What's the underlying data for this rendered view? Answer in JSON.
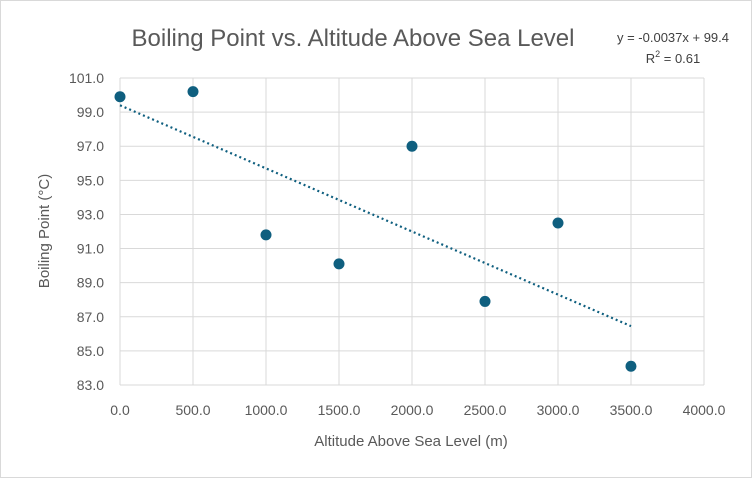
{
  "chart_data": {
    "type": "scatter",
    "title": "Boiling Point vs. Altitude Above Sea Level",
    "xlabel": "Altitude Above Sea Level (m)",
    "ylabel": "Boiling Point (°C)",
    "xlim": [
      0,
      4000
    ],
    "ylim": [
      83,
      101
    ],
    "x_ticks": [
      "0.0",
      "500.0",
      "1000.0",
      "1500.0",
      "2000.0",
      "2500.0",
      "3000.0",
      "3500.0",
      "4000.0"
    ],
    "y_ticks": [
      "83.0",
      "85.0",
      "87.0",
      "89.0",
      "91.0",
      "93.0",
      "95.0",
      "97.0",
      "99.0",
      "101.0"
    ],
    "grid": true,
    "series": [
      {
        "name": "Boiling Point",
        "color": "#0f5f7f",
        "x": [
          0,
          500,
          1000,
          1500,
          2000,
          2500,
          3000,
          3500
        ],
        "y": [
          99.9,
          100.2,
          91.8,
          90.1,
          97.0,
          87.9,
          92.5,
          84.1
        ]
      }
    ],
    "trendline": {
      "type": "linear",
      "slope": -0.0037,
      "intercept": 99.4,
      "x_range": [
        0,
        3500
      ],
      "equation": "y = -0.0037x + 99.4",
      "r2_label": "R",
      "r2_sup": "2",
      "r2_value": " = 0.61"
    }
  }
}
